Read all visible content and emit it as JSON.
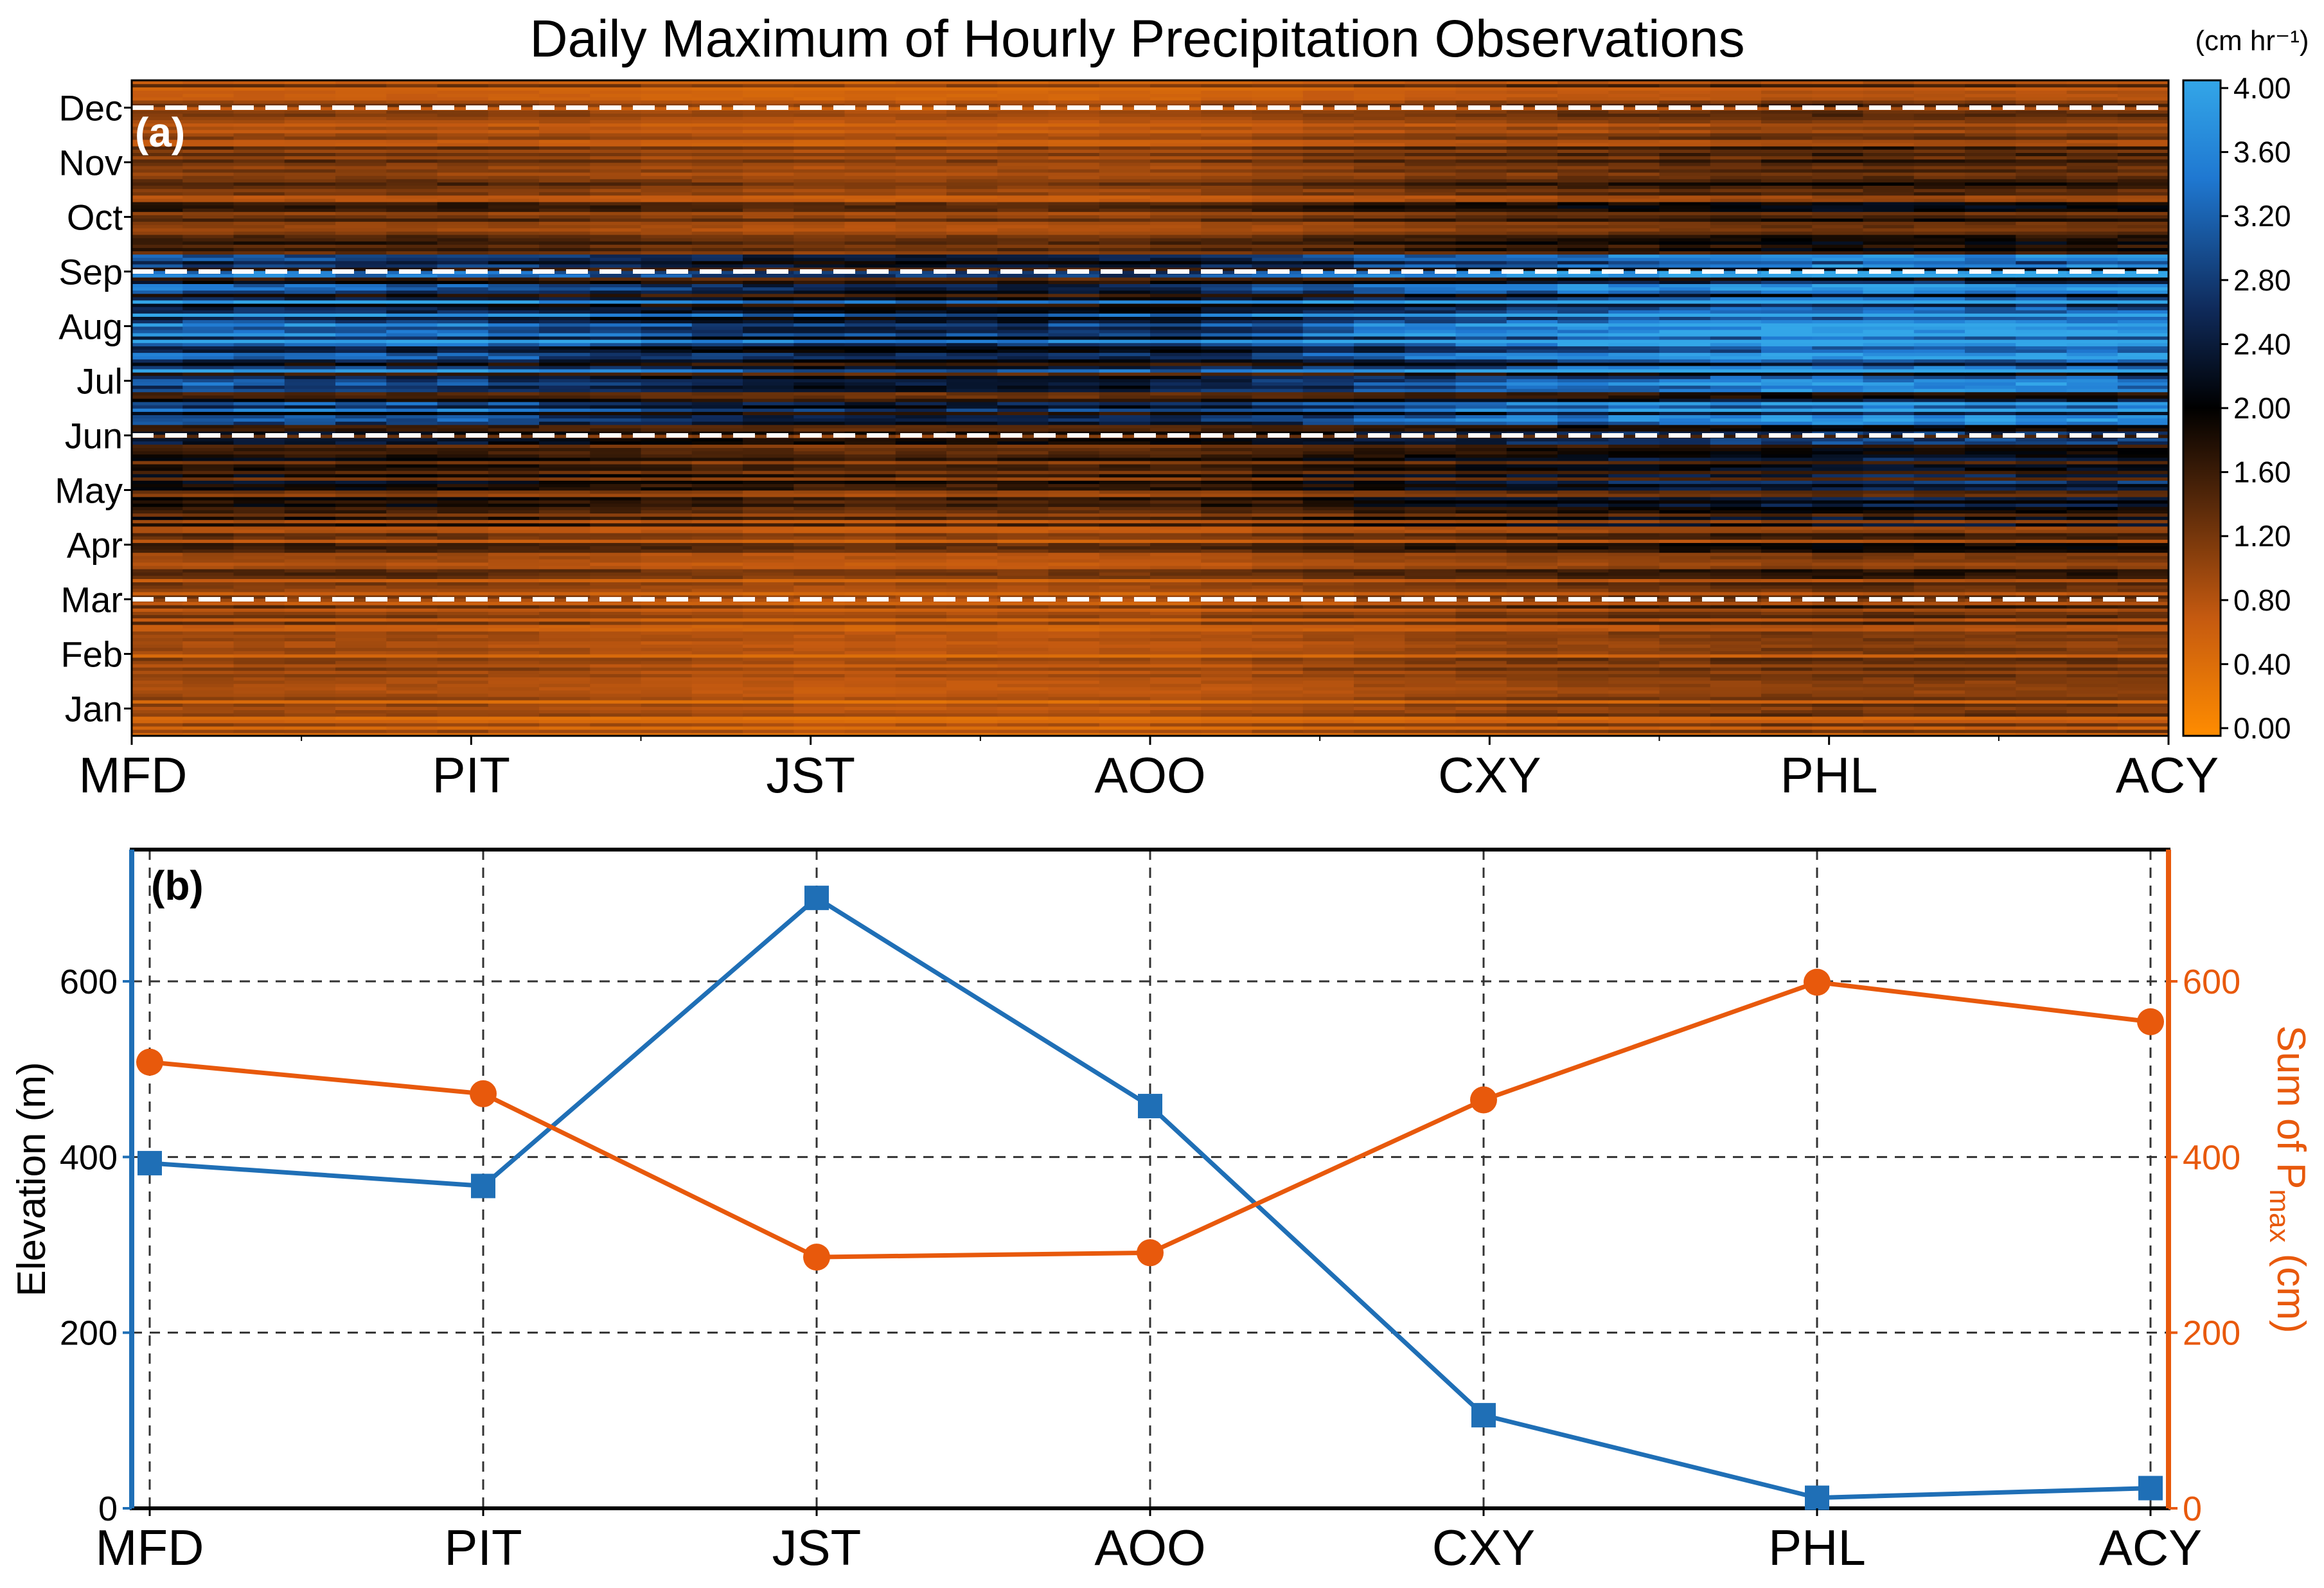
{
  "colors": {
    "orange": "#e8590c",
    "blue": "#1f6fb6",
    "black": "#000000",
    "grid": "#333333",
    "white": "#ffffff"
  },
  "stations": [
    "MFD",
    "PIT",
    "JST",
    "AOO",
    "CXY",
    "PHL",
    "ACY"
  ],
  "chart_data": [
    {
      "type": "heatmap",
      "panel": "(a)",
      "title": "Daily Maximum of Hourly Precipitation Observations",
      "x_categories": [
        "MFD",
        "PIT",
        "JST",
        "AOO",
        "CXY",
        "PHL",
        "ACY"
      ],
      "y_months": [
        "Jan",
        "Feb",
        "Mar",
        "Apr",
        "May",
        "Jun",
        "Jul",
        "Aug",
        "Sep",
        "Oct",
        "Nov",
        "Dec"
      ],
      "season_boundaries": [
        "Mar",
        "Jun",
        "Sep",
        "Dec"
      ],
      "colorbar": {
        "unit_label": "(cm hr⁻¹)",
        "ticks": [
          "0.00",
          "0.40",
          "0.80",
          "1.20",
          "1.60",
          "2.00",
          "2.40",
          "2.80",
          "3.20",
          "3.60",
          "4.00"
        ],
        "range": [
          0,
          4.0
        ],
        "colormap": [
          "#ff8c00",
          "#c55a10",
          "#5a2a0a",
          "#000000",
          "#0f2a5a",
          "#1f78d1",
          "#33a6e8"
        ]
      },
      "seasonal_intensity_by_month": [
        0.7,
        0.75,
        0.9,
        1.1,
        1.45,
        1.9,
        2.7,
        2.9,
        2.3,
        1.2,
        1.0,
        0.9
      ],
      "station_intensity_factor": [
        1.05,
        1.0,
        0.82,
        0.85,
        1.12,
        1.28,
        1.22
      ]
    },
    {
      "type": "line",
      "panel": "(b)",
      "categories": [
        "MFD",
        "PIT",
        "JST",
        "AOO",
        "CXY",
        "PHL",
        "ACY"
      ],
      "series": [
        {
          "name": "Elevation",
          "axis": "left",
          "marker": "square",
          "color": "#1f6fb6",
          "values": [
            393,
            367,
            695,
            458,
            106,
            12,
            23
          ]
        },
        {
          "name": "Sum of Pmax",
          "axis": "right",
          "marker": "circle",
          "color": "#e8590c",
          "values": [
            508,
            472,
            286,
            291,
            465,
            599,
            554
          ]
        }
      ],
      "ylabel_left": "Elevation (m)",
      "ylabel_right_prefix": "Sum of P",
      "ylabel_right_sub": "max",
      "ylabel_right_suffix": " (cm)",
      "ylim_left": [
        0,
        750
      ],
      "ylim_right": [
        0,
        750
      ],
      "yticks": [
        "0",
        "200",
        "400",
        "600"
      ],
      "grid": true
    }
  ]
}
